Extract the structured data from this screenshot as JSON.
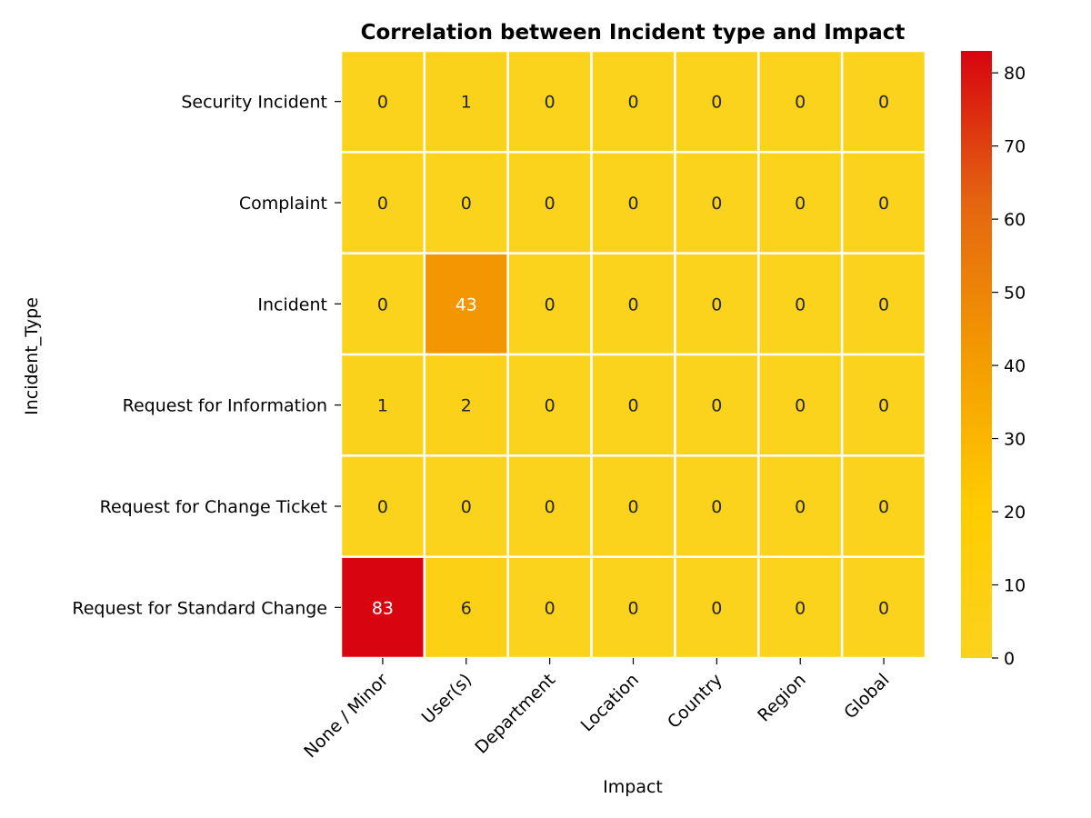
{
  "chart_data": {
    "type": "heatmap",
    "title": "Correlation between Incident type and Impact",
    "xlabel": "Impact",
    "ylabel": "Incident_Type",
    "x_categories": [
      "None / Minor",
      "User(s)",
      "Department",
      "Location",
      "Country",
      "Region",
      "Global"
    ],
    "y_categories": [
      "Security Incident",
      "Complaint",
      "Incident",
      "Request for Information",
      "Request for Change Ticket",
      "Request for Standard Change"
    ],
    "values": [
      [
        0,
        1,
        0,
        0,
        0,
        0,
        0
      ],
      [
        0,
        0,
        0,
        0,
        0,
        0,
        0
      ],
      [
        0,
        43,
        0,
        0,
        0,
        0,
        0
      ],
      [
        1,
        2,
        0,
        0,
        0,
        0,
        0
      ],
      [
        0,
        0,
        0,
        0,
        0,
        0,
        0
      ],
      [
        83,
        6,
        0,
        0,
        0,
        0,
        0
      ]
    ],
    "value_range": [
      0,
      83
    ],
    "colorbar_ticks": [
      0,
      10,
      20,
      30,
      40,
      50,
      60,
      70,
      80
    ],
    "colormap": [
      "#FBD21C",
      "#FFCC00",
      "#F39A00",
      "#E46510",
      "#D8040F"
    ],
    "grid_line_color": "#ffffff",
    "annotation_dark_color": "#262626",
    "annotation_light_color": "#ffffff"
  }
}
